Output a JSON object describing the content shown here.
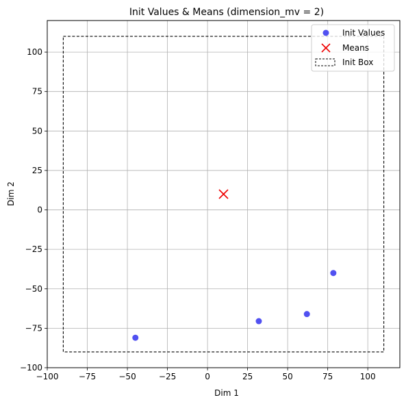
{
  "chart_data": {
    "type": "scatter",
    "title": "Init Values & Means (dimension_mv = 2)",
    "xlabel": "Dim 1",
    "ylabel": "Dim 2",
    "xlim": [
      -100,
      120
    ],
    "ylim": [
      -100,
      120
    ],
    "xticks": [
      -100,
      -75,
      -50,
      -25,
      0,
      25,
      50,
      75,
      100
    ],
    "yticks": [
      -100,
      -75,
      -50,
      -25,
      0,
      25,
      50,
      75,
      100
    ],
    "xtick_labels": [
      "−100",
      "−75",
      "−50",
      "−25",
      "0",
      "25",
      "50",
      "75",
      "100"
    ],
    "ytick_labels": [
      "−100",
      "−75",
      "−50",
      "−25",
      "0",
      "25",
      "50",
      "75",
      "100"
    ],
    "grid": true,
    "legend_position": "top-right",
    "series": [
      {
        "name": "Init Values",
        "marker": "circle",
        "color": "#3333ee",
        "points": [
          [
            -45,
            -81
          ],
          [
            32,
            -70.5
          ],
          [
            62,
            -66
          ],
          [
            78.5,
            -40
          ]
        ]
      },
      {
        "name": "Means",
        "marker": "x",
        "color": "#ee0000",
        "points": [
          [
            10,
            10
          ]
        ]
      }
    ],
    "box": {
      "name": "Init Box",
      "x_range": [
        -90,
        110
      ],
      "y_range": [
        -90,
        110
      ],
      "style": "dashed",
      "color": "#000000"
    }
  }
}
